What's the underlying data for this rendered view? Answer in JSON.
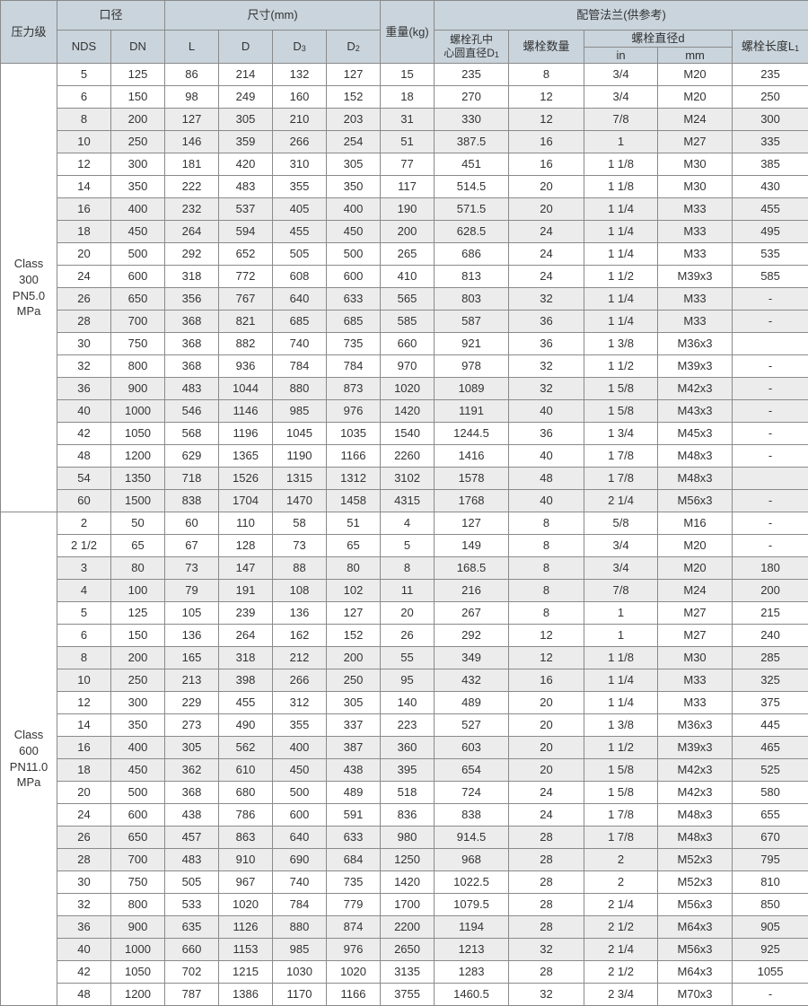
{
  "header": {
    "pressure_class": "压力级",
    "bore": "口径",
    "dimensions": "尺寸(mm)",
    "weight": "重量(kg)",
    "flange": "配管法兰(供参考)",
    "nds": "NDS",
    "dn": "DN",
    "l": "L",
    "d": "D",
    "d3": {
      "main": "D",
      "sub": "3"
    },
    "d2": {
      "main": "D",
      "sub": "2"
    },
    "bolt_circle_line1": "螺栓孔中",
    "bolt_circle_line2": {
      "main": "心圆直径D",
      "sub": "1"
    },
    "bolt_count": "螺栓数量",
    "bolt_diameter": "螺栓直径d",
    "in": "in",
    "mm": "mm",
    "bolt_length": {
      "main": "螺栓长度L",
      "sub": "1"
    }
  },
  "sections": [
    {
      "label": [
        "Class",
        "300",
        "PN5.0",
        "MPa"
      ],
      "rows": [
        [
          "5",
          "125",
          "86",
          "214",
          "132",
          "127",
          "15",
          "235",
          "8",
          "3/4",
          "M20",
          "235"
        ],
        [
          "6",
          "150",
          "98",
          "249",
          "160",
          "152",
          "18",
          "270",
          "12",
          "3/4",
          "M20",
          "250"
        ],
        [
          "8",
          "200",
          "127",
          "305",
          "210",
          "203",
          "31",
          "330",
          "12",
          "7/8",
          "M24",
          "300"
        ],
        [
          "10",
          "250",
          "146",
          "359",
          "266",
          "254",
          "51",
          "387.5",
          "16",
          "1",
          "M27",
          "335"
        ],
        [
          "12",
          "300",
          "181",
          "420",
          "310",
          "305",
          "77",
          "451",
          "16",
          "1 1/8",
          "M30",
          "385"
        ],
        [
          "14",
          "350",
          "222",
          "483",
          "355",
          "350",
          "117",
          "514.5",
          "20",
          "1 1/8",
          "M30",
          "430"
        ],
        [
          "16",
          "400",
          "232",
          "537",
          "405",
          "400",
          "190",
          "571.5",
          "20",
          "1 1/4",
          "M33",
          "455"
        ],
        [
          "18",
          "450",
          "264",
          "594",
          "455",
          "450",
          "200",
          "628.5",
          "24",
          "1 1/4",
          "M33",
          "495"
        ],
        [
          "20",
          "500",
          "292",
          "652",
          "505",
          "500",
          "265",
          "686",
          "24",
          "1 1/4",
          "M33",
          "535"
        ],
        [
          "24",
          "600",
          "318",
          "772",
          "608",
          "600",
          "410",
          "813",
          "24",
          "1 1/2",
          "M39x3",
          "585"
        ],
        [
          "26",
          "650",
          "356",
          "767",
          "640",
          "633",
          "565",
          "803",
          "32",
          "1 1/4",
          "M33",
          "-"
        ],
        [
          "28",
          "700",
          "368",
          "821",
          "685",
          "685",
          "585",
          "587",
          "36",
          "1 1/4",
          "M33",
          "-"
        ],
        [
          "30",
          "750",
          "368",
          "882",
          "740",
          "735",
          "660",
          "921",
          "36",
          "1 3/8",
          "M36x3",
          ""
        ],
        [
          "32",
          "800",
          "368",
          "936",
          "784",
          "784",
          "970",
          "978",
          "32",
          "1 1/2",
          "M39x3",
          "-"
        ],
        [
          "36",
          "900",
          "483",
          "1044",
          "880",
          "873",
          "1020",
          "1089",
          "32",
          "1 5/8",
          "M42x3",
          "-"
        ],
        [
          "40",
          "1000",
          "546",
          "1146",
          "985",
          "976",
          "1420",
          "1191",
          "40",
          "1 5/8",
          "M43x3",
          "-"
        ],
        [
          "42",
          "1050",
          "568",
          "1196",
          "1045",
          "1035",
          "1540",
          "1244.5",
          "36",
          "1 3/4",
          "M45x3",
          "-"
        ],
        [
          "48",
          "1200",
          "629",
          "1365",
          "1190",
          "1166",
          "2260",
          "1416",
          "40",
          "1 7/8",
          "M48x3",
          "-"
        ],
        [
          "54",
          "1350",
          "718",
          "1526",
          "1315",
          "1312",
          "3102",
          "1578",
          "48",
          "1 7/8",
          "M48x3",
          ""
        ],
        [
          "60",
          "1500",
          "838",
          "1704",
          "1470",
          "1458",
          "4315",
          "1768",
          "40",
          "2 1/4",
          "M56x3",
          "-"
        ]
      ]
    },
    {
      "label": [
        "Class",
        "600",
        "PN11.0",
        "MPa"
      ],
      "rows": [
        [
          "2",
          "50",
          "60",
          "110",
          "58",
          "51",
          "4",
          "127",
          "8",
          "5/8",
          "M16",
          "-"
        ],
        [
          "2 1/2",
          "65",
          "67",
          "128",
          "73",
          "65",
          "5",
          "149",
          "8",
          "3/4",
          "M20",
          "-"
        ],
        [
          "3",
          "80",
          "73",
          "147",
          "88",
          "80",
          "8",
          "168.5",
          "8",
          "3/4",
          "M20",
          "180"
        ],
        [
          "4",
          "100",
          "79",
          "191",
          "108",
          "102",
          "11",
          "216",
          "8",
          "7/8",
          "M24",
          "200"
        ],
        [
          "5",
          "125",
          "105",
          "239",
          "136",
          "127",
          "20",
          "267",
          "8",
          "1",
          "M27",
          "215"
        ],
        [
          "6",
          "150",
          "136",
          "264",
          "162",
          "152",
          "26",
          "292",
          "12",
          "1",
          "M27",
          "240"
        ],
        [
          "8",
          "200",
          "165",
          "318",
          "212",
          "200",
          "55",
          "349",
          "12",
          "1 1/8",
          "M30",
          "285"
        ],
        [
          "10",
          "250",
          "213",
          "398",
          "266",
          "250",
          "95",
          "432",
          "16",
          "1 1/4",
          "M33",
          "325"
        ],
        [
          "12",
          "300",
          "229",
          "455",
          "312",
          "305",
          "140",
          "489",
          "20",
          "1 1/4",
          "M33",
          "375"
        ],
        [
          "14",
          "350",
          "273",
          "490",
          "355",
          "337",
          "223",
          "527",
          "20",
          "1 3/8",
          "M36x3",
          "445"
        ],
        [
          "16",
          "400",
          "305",
          "562",
          "400",
          "387",
          "360",
          "603",
          "20",
          "1 1/2",
          "M39x3",
          "465"
        ],
        [
          "18",
          "450",
          "362",
          "610",
          "450",
          "438",
          "395",
          "654",
          "20",
          "1 5/8",
          "M42x3",
          "525"
        ],
        [
          "20",
          "500",
          "368",
          "680",
          "500",
          "489",
          "518",
          "724",
          "24",
          "1 5/8",
          "M42x3",
          "580"
        ],
        [
          "24",
          "600",
          "438",
          "786",
          "600",
          "591",
          "836",
          "838",
          "24",
          "1 7/8",
          "M48x3",
          "655"
        ],
        [
          "26",
          "650",
          "457",
          "863",
          "640",
          "633",
          "980",
          "914.5",
          "28",
          "1 7/8",
          "M48x3",
          "670"
        ],
        [
          "28",
          "700",
          "483",
          "910",
          "690",
          "684",
          "1250",
          "968",
          "28",
          "2",
          "M52x3",
          "795"
        ],
        [
          "30",
          "750",
          "505",
          "967",
          "740",
          "735",
          "1420",
          "1022.5",
          "28",
          "2",
          "M52x3",
          "810"
        ],
        [
          "32",
          "800",
          "533",
          "1020",
          "784",
          "779",
          "1700",
          "1079.5",
          "28",
          "2 1/4",
          "M56x3",
          "850"
        ],
        [
          "36",
          "900",
          "635",
          "1126",
          "880",
          "874",
          "2200",
          "1194",
          "28",
          "2 1/2",
          "M64x3",
          "905"
        ],
        [
          "40",
          "1000",
          "660",
          "1153",
          "985",
          "976",
          "2650",
          "1213",
          "32",
          "2 1/4",
          "M56x3",
          "925"
        ],
        [
          "42",
          "1050",
          "702",
          "1215",
          "1030",
          "1020",
          "3135",
          "1283",
          "28",
          "2 1/2",
          "M64x3",
          "1055"
        ],
        [
          "48",
          "1200",
          "787",
          "1386",
          "1170",
          "1166",
          "3755",
          "1460.5",
          "32",
          "2 3/4",
          "M70x3",
          "-"
        ]
      ]
    }
  ],
  "colors": {
    "header_bg": "#c9d4dc",
    "stripe_bg": "#ececec",
    "border": "#8a8a8a"
  }
}
